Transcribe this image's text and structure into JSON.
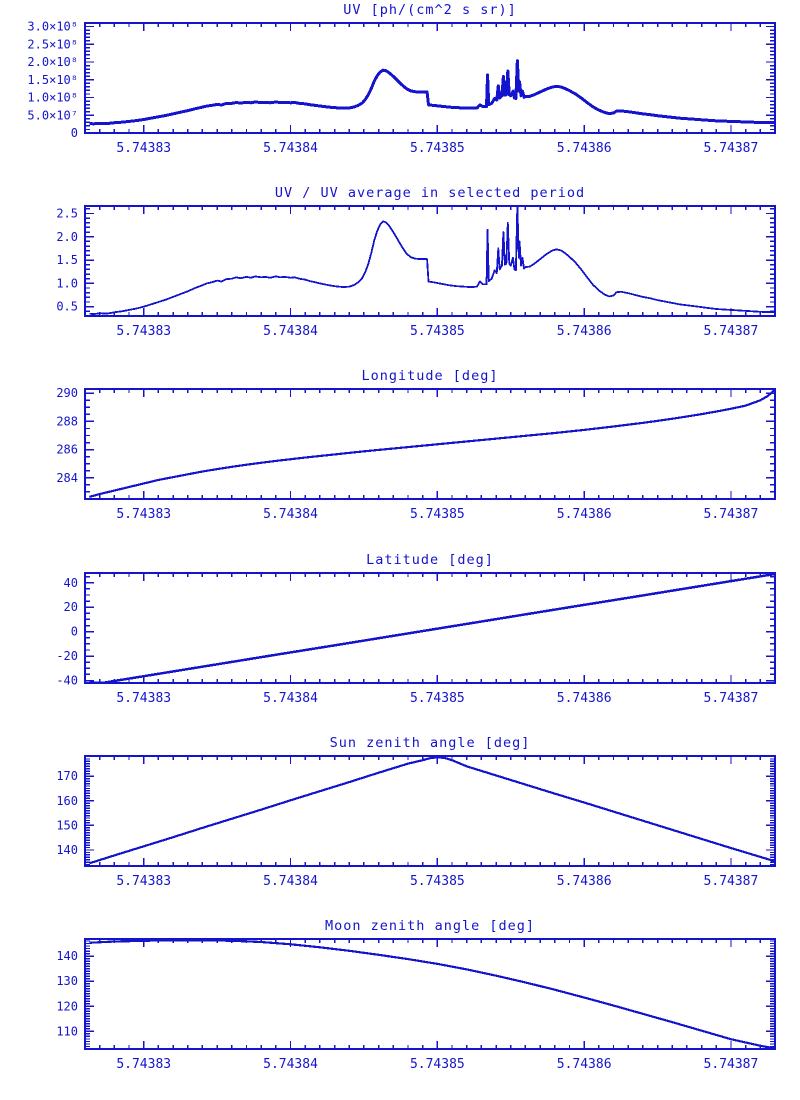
{
  "page": {
    "background": "#ffffff",
    "accent_color": "#1414cc"
  },
  "chart_data": {
    "type": "line",
    "layout": "6 stacked plots, shared x axis, box frame, inward ticks, no grid, no legend",
    "x_encoding": {
      "base": 5.7438,
      "offset_unit": 1e-06
    },
    "uv_average_used_for_ratio": 76000000.0,
    "shared_series": {
      "uv_ratio": {
        "x_offsets": [
          26.3,
          26.6,
          27,
          27.5,
          28,
          28.5,
          29,
          29.5,
          30,
          30.5,
          31,
          31.5,
          32,
          32.5,
          33,
          33.5,
          34,
          34.3,
          34.6,
          35,
          35.3,
          35.6,
          36,
          36.3,
          36.6,
          37,
          37.3,
          37.6,
          38,
          38.3,
          38.6,
          39,
          39.3,
          39.6,
          40,
          40.3,
          40.6,
          41,
          41.3,
          41.6,
          42,
          42.3,
          42.6,
          43,
          43.3,
          43.6,
          44,
          44.3,
          44.6,
          44.9,
          45.1,
          45.3,
          45.5,
          45.7,
          45.9,
          46.1,
          46.3,
          46.5,
          46.7,
          47,
          47.3,
          47.6,
          47.9,
          48.2,
          48.5,
          48.9,
          49.3,
          49.4,
          49.8,
          50.3,
          50.8,
          51.3,
          51.8,
          52.3,
          52.7,
          52.9,
          53.1,
          53.35,
          53.42,
          53.5,
          53.7,
          53.9,
          54.05,
          54.15,
          54.25,
          54.4,
          54.5,
          54.6,
          54.7,
          54.8,
          54.9,
          55,
          55.15,
          55.25,
          55.35,
          55.45,
          55.55,
          55.6,
          55.7,
          55.8,
          55.9,
          56,
          56.3,
          56.6,
          57,
          57.4,
          57.8,
          58.1,
          58.4,
          58.7,
          59,
          59.4,
          59.8,
          60.2,
          60.6,
          61,
          61.4,
          61.7,
          62,
          62.2,
          62.5,
          63,
          63.5,
          64,
          64.5,
          65,
          65.5,
          66,
          66.5,
          67,
          67.5,
          68,
          68.5,
          69,
          69.5,
          70,
          70.5,
          71,
          71.5,
          72,
          72.5,
          73
        ],
        "values": [
          0.35,
          0.34,
          0.36,
          0.35,
          0.38,
          0.4,
          0.43,
          0.46,
          0.5,
          0.55,
          0.6,
          0.65,
          0.71,
          0.77,
          0.83,
          0.9,
          0.96,
          1.0,
          1.02,
          1.06,
          1.04,
          1.09,
          1.1,
          1.13,
          1.11,
          1.14,
          1.12,
          1.15,
          1.13,
          1.14,
          1.12,
          1.15,
          1.13,
          1.14,
          1.12,
          1.13,
          1.1,
          1.08,
          1.05,
          1.03,
          1.0,
          0.98,
          0.96,
          0.94,
          0.93,
          0.92,
          0.93,
          0.96,
          1.02,
          1.12,
          1.25,
          1.42,
          1.65,
          1.92,
          2.12,
          2.26,
          2.33,
          2.31,
          2.24,
          2.1,
          1.94,
          1.78,
          1.64,
          1.56,
          1.53,
          1.52,
          1.52,
          1.04,
          1.02,
          0.99,
          0.96,
          0.94,
          0.93,
          0.92,
          0.93,
          1.04,
          0.98,
          0.98,
          2.15,
          1.05,
          1.1,
          1.28,
          1.22,
          1.75,
          1.3,
          1.38,
          2.1,
          1.4,
          1.42,
          2.3,
          1.42,
          1.38,
          1.55,
          1.3,
          1.28,
          2.68,
          1.55,
          1.9,
          1.38,
          1.55,
          1.32,
          1.35,
          1.36,
          1.42,
          1.52,
          1.62,
          1.7,
          1.73,
          1.71,
          1.65,
          1.57,
          1.45,
          1.3,
          1.13,
          0.97,
          0.85,
          0.76,
          0.72,
          0.74,
          0.81,
          0.82,
          0.79,
          0.75,
          0.71,
          0.68,
          0.64,
          0.61,
          0.58,
          0.55,
          0.53,
          0.51,
          0.49,
          0.47,
          0.45,
          0.44,
          0.43,
          0.42,
          0.41,
          0.4,
          0.39,
          0.385,
          0.38
        ]
      }
    },
    "plots": [
      {
        "id": "uv-flux",
        "title": "UV [ph/(cm^2 s sr)]",
        "xlim": [
          5.743826,
          5.743873
        ],
        "x_ticks": [
          5.74383,
          5.74384,
          5.74385,
          5.74386,
          5.74387
        ],
        "x_tick_labels": [
          "5.74383",
          "5.74384",
          "5.74385",
          "5.74386",
          "5.74387"
        ],
        "x_minor_divisions": 10,
        "ylim": [
          0,
          310000000.0
        ],
        "y_ticks": [
          0,
          50000000.0,
          100000000.0,
          150000000.0,
          200000000.0,
          250000000.0,
          300000000.0
        ],
        "y_tick_labels": [
          "0",
          "5.0×10⁷",
          "1.0×10⁸",
          "1.5×10⁸",
          "2.0×10⁸",
          "2.5×10⁸",
          "3.0×10⁸"
        ],
        "y_minor_divisions": 5,
        "series": {
          "ref": "uv_ratio",
          "y_scale": 76000000.0
        }
      },
      {
        "id": "uv-ratio",
        "title": "UV / UV average in selected period",
        "xlim": [
          5.743826,
          5.743873
        ],
        "x_ticks": [
          5.74383,
          5.74384,
          5.74385,
          5.74386,
          5.74387
        ],
        "x_tick_labels": [
          "5.74383",
          "5.74384",
          "5.74385",
          "5.74386",
          "5.74387"
        ],
        "x_minor_divisions": 10,
        "ylim": [
          0.3,
          2.66
        ],
        "y_ticks": [
          0.5,
          1.0,
          1.5,
          2.0,
          2.5
        ],
        "y_tick_labels": [
          "0.5",
          "1.0",
          "1.5",
          "2.0",
          "2.5"
        ],
        "y_minor_divisions": 5,
        "series": {
          "ref": "uv_ratio",
          "y_scale": 1
        }
      },
      {
        "id": "longitude",
        "title": "Longitude [deg]",
        "xlim": [
          5.743826,
          5.743873
        ],
        "x_ticks": [
          5.74383,
          5.74384,
          5.74385,
          5.74386,
          5.74387
        ],
        "x_tick_labels": [
          "5.74383",
          "5.74384",
          "5.74385",
          "5.74386",
          "5.74387"
        ],
        "x_minor_divisions": 10,
        "ylim": [
          282.5,
          290.3
        ],
        "y_ticks": [
          284,
          286,
          288,
          290
        ],
        "y_tick_labels": [
          "284",
          "286",
          "288",
          "290"
        ],
        "y_minor_divisions": 4,
        "series": {
          "x_offsets": [
            26.3,
            27,
            28,
            29,
            30,
            31,
            32,
            33,
            34,
            35,
            36,
            37,
            38,
            39,
            40,
            41,
            42,
            43,
            44,
            45,
            46,
            47,
            48,
            49,
            50,
            51,
            52,
            53,
            54,
            55,
            56,
            57,
            58,
            59,
            60,
            61,
            62,
            63,
            64,
            65,
            66,
            67,
            68,
            69,
            70,
            71,
            72,
            72.5,
            73
          ],
          "y": [
            282.65,
            282.85,
            283.1,
            283.35,
            283.6,
            283.85,
            284.05,
            284.25,
            284.45,
            284.62,
            284.78,
            284.93,
            285.07,
            285.2,
            285.32,
            285.44,
            285.55,
            285.66,
            285.77,
            285.88,
            285.98,
            286.08,
            286.18,
            286.28,
            286.38,
            286.48,
            286.58,
            286.68,
            286.78,
            286.88,
            286.98,
            287.08,
            287.18,
            287.29,
            287.4,
            287.52,
            287.64,
            287.77,
            287.9,
            288.04,
            288.19,
            288.35,
            288.52,
            288.7,
            288.9,
            289.12,
            289.5,
            289.8,
            290.25
          ]
        }
      },
      {
        "id": "latitude",
        "title": "Latitude [deg]",
        "xlim": [
          5.743826,
          5.743873
        ],
        "x_ticks": [
          5.74383,
          5.74384,
          5.74385,
          5.74386,
          5.74387
        ],
        "x_tick_labels": [
          "5.74383",
          "5.74384",
          "5.74385",
          "5.74386",
          "5.74387"
        ],
        "x_minor_divisions": 10,
        "ylim": [
          -42,
          48
        ],
        "y_ticks": [
          -40,
          -20,
          0,
          20,
          40
        ],
        "y_tick_labels": [
          "-40",
          "-20",
          "0",
          "20",
          "40"
        ],
        "y_minor_divisions": 4,
        "series": {
          "x_offsets": [
            26.3,
            27.2,
            31,
            35,
            39,
            43,
            47,
            51,
            55,
            59,
            63,
            67,
            71,
            73
          ],
          "y": [
            -41.9,
            -41.9,
            -34.5,
            -26.7,
            -18.9,
            -11.2,
            -3.4,
            4.4,
            12.2,
            20.0,
            27.7,
            35.5,
            43.3,
            47.2
          ]
        }
      },
      {
        "id": "sun-zenith-angle",
        "title": "Sun zenith angle [deg]",
        "xlim": [
          5.743826,
          5.743873
        ],
        "x_ticks": [
          5.74383,
          5.74384,
          5.74385,
          5.74386,
          5.74387
        ],
        "x_tick_labels": [
          "5.74383",
          "5.74384",
          "5.74385",
          "5.74386",
          "5.74387"
        ],
        "x_minor_divisions": 10,
        "ylim": [
          133.5,
          178.2
        ],
        "y_ticks": [
          140,
          150,
          160,
          170
        ],
        "y_tick_labels": [
          "140",
          "150",
          "160",
          "170"
        ],
        "y_minor_divisions": 10,
        "series": {
          "x_offsets": [
            26.3,
            28,
            30,
            32,
            34,
            36,
            38,
            40,
            42,
            44,
            46,
            48,
            49,
            49.5,
            50,
            50.5,
            51,
            52,
            54,
            56,
            58,
            60,
            62,
            64,
            66,
            68,
            70,
            72,
            73
          ],
          "y": [
            134.6,
            137.8,
            141.5,
            145.2,
            149.0,
            152.7,
            156.4,
            160.2,
            163.9,
            167.6,
            171.4,
            175.1,
            176.5,
            177.3,
            177.7,
            177.4,
            176.5,
            174.0,
            170.3,
            166.6,
            162.9,
            159.3,
            155.6,
            151.9,
            148.2,
            144.5,
            140.8,
            137.2,
            135.4
          ]
        }
      },
      {
        "id": "moon-zenith-angle",
        "title": "Moon zenith angle [deg]",
        "xlim": [
          5.743826,
          5.743873
        ],
        "x_ticks": [
          5.74383,
          5.74384,
          5.74385,
          5.74386,
          5.74387
        ],
        "x_tick_labels": [
          "5.74383",
          "5.74384",
          "5.74385",
          "5.74386",
          "5.74387"
        ],
        "x_minor_divisions": 10,
        "ylim": [
          103,
          146.8
        ],
        "y_ticks": [
          110,
          120,
          130,
          140
        ],
        "y_tick_labels": [
          "110",
          "120",
          "130",
          "140"
        ],
        "y_minor_divisions": 10,
        "series": {
          "x_offsets": [
            26.3,
            28,
            30,
            32,
            34,
            36,
            38,
            40,
            42,
            44,
            46,
            48,
            50,
            52,
            54,
            56,
            58,
            60,
            62,
            64,
            66,
            68,
            70,
            71,
            72,
            73
          ],
          "y": [
            145.3,
            145.8,
            146.1,
            146.3,
            146.3,
            146.1,
            145.6,
            144.7,
            143.5,
            142.1,
            140.5,
            138.8,
            136.9,
            134.7,
            132.2,
            129.5,
            126.6,
            123.5,
            120.3,
            117.0,
            113.7,
            110.3,
            106.9,
            105.6,
            104.3,
            103.2
          ]
        }
      }
    ]
  }
}
